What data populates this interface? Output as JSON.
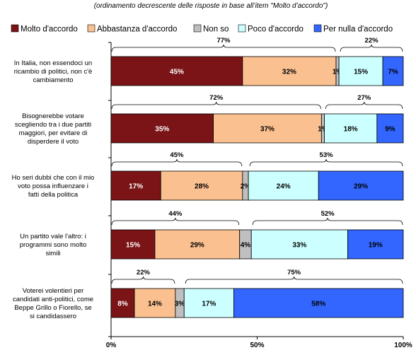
{
  "chart_data": {
    "type": "bar",
    "orientation": "horizontal",
    "stacked": true,
    "subtitle": "(ordinamento decrescente delle risposte in base all’item \"Molto d’accordo\")",
    "legend_position": "top",
    "categories": [
      "In Italia, non essendoci un ricambio di politici, non c'è cambiamento",
      "Bisognerebbe votare scegliendo tra i due partiti maggiori, per evitare di disperdere il voto",
      "Ho seri dubbi che con il mio voto possa influenzare i fatti della politica",
      "Un partito vale l'altro: i programmi sono molto simili",
      "Voterei volentieri per candidati anti-politici, come Beppe Grillo o Fiorello, se si candidassero"
    ],
    "category_lines": [
      [
        "In Italia, non essendoci un",
        "ricambio di politici, non c'è",
        "cambiamento"
      ],
      [
        "Bisognerebbe votare",
        "scegliendo tra i due partiti",
        "maggiori, per evitare di",
        "disperdere il voto"
      ],
      [
        "Ho seri dubbi che con il mio",
        "voto possa influenzare i",
        "fatti della politica"
      ],
      [
        "Un partito vale l'altro: i",
        "programmi sono molto",
        "simili"
      ],
      [
        "Voterei volentieri per",
        "candidati anti-politici, come",
        "Beppe Grillo o Fiorello, se",
        "si candidassero"
      ]
    ],
    "series": [
      {
        "name": "Molto d'accordo",
        "color": "#7b1416",
        "label_color": "#ffffff",
        "values": [
          45,
          35,
          17,
          15,
          8
        ]
      },
      {
        "name": "Abbastanza d'accordo",
        "color": "#fac090",
        "label_color": "#000000",
        "values": [
          32,
          37,
          28,
          29,
          14
        ]
      },
      {
        "name": "Non so",
        "color": "#bfbfbf",
        "label_color": "#000000",
        "values": [
          1,
          1,
          2,
          4,
          3
        ]
      },
      {
        "name": "Poco d'accordo",
        "color": "#ccffff",
        "label_color": "#000000",
        "values": [
          15,
          18,
          24,
          33,
          17
        ]
      },
      {
        "name": "Per nulla d'accordo",
        "color": "#3366ff",
        "label_color": "#000000",
        "values": [
          7,
          9,
          29,
          19,
          58
        ]
      }
    ],
    "agree_totals": [
      "77%",
      "72%",
      "45%",
      "44%",
      "22%"
    ],
    "disagree_totals": [
      "22%",
      "27%",
      "53%",
      "52%",
      "75%"
    ],
    "xlim": [
      0,
      100
    ],
    "xticks": [
      "0%",
      "50%",
      "100%"
    ],
    "grid": false
  }
}
